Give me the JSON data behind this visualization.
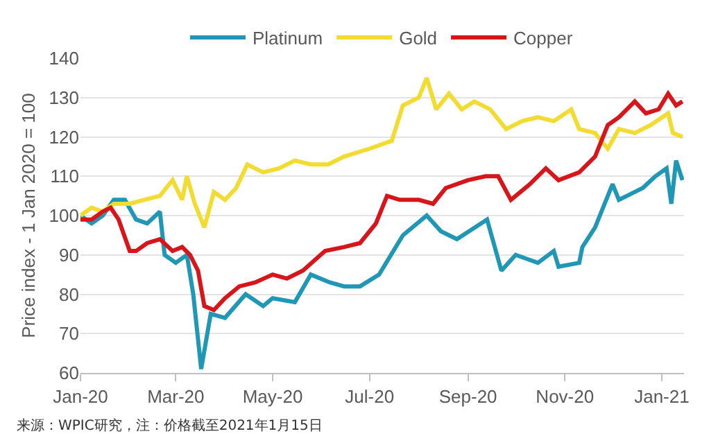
{
  "chart_data": {
    "type": "line",
    "ylabel": "Price index - 1 Jan 2020 = 100",
    "xlim": [
      "2020-01-01",
      "2021-01-15"
    ],
    "xticks": [
      {
        "value": "2020-01-01",
        "label": "Jan-20"
      },
      {
        "value": "2020-03-01",
        "label": "Mar-20"
      },
      {
        "value": "2020-05-01",
        "label": "May-20"
      },
      {
        "value": "2020-07-01",
        "label": "Jul-20"
      },
      {
        "value": "2020-09-01",
        "label": "Sep-20"
      },
      {
        "value": "2020-11-01",
        "label": "Nov-20"
      },
      {
        "value": "2021-01-01",
        "label": "Jan-21"
      }
    ],
    "ylim": [
      60,
      140
    ],
    "yticks": [
      60,
      70,
      80,
      90,
      100,
      110,
      120,
      130,
      140
    ],
    "grid": "y",
    "legend": "top",
    "marker": "none",
    "line_style": "solid",
    "annotations": [
      "来源：WPIC研究，注：价格截至2021年1月15日"
    ],
    "series": [
      {
        "name": "Platinum",
        "color": "#1f97b5",
        "x": [
          "2020-01-01",
          "2020-01-08",
          "2020-01-15",
          "2020-01-22",
          "2020-01-29",
          "2020-02-05",
          "2020-02-12",
          "2020-02-20",
          "2020-02-23",
          "2020-03-01",
          "2020-03-08",
          "2020-03-12",
          "2020-03-17",
          "2020-03-23",
          "2020-04-01",
          "2020-04-14",
          "2020-04-25",
          "2020-05-01",
          "2020-05-15",
          "2020-05-25",
          "2020-06-06",
          "2020-06-15",
          "2020-06-25",
          "2020-07-07",
          "2020-07-22",
          "2020-08-06",
          "2020-08-15",
          "2020-08-25",
          "2020-09-13",
          "2020-09-22",
          "2020-10-01",
          "2020-10-15",
          "2020-10-25",
          "2020-10-28",
          "2020-11-10",
          "2020-11-12",
          "2020-11-20",
          "2020-12-01",
          "2020-12-05",
          "2020-12-10",
          "2020-12-20",
          "2020-12-28",
          "2021-01-04",
          "2021-01-07",
          "2021-01-10",
          "2021-01-14"
        ],
        "values": [
          100,
          98,
          100,
          104,
          104,
          99,
          98,
          101,
          90,
          88,
          90,
          80,
          61,
          75,
          74,
          80,
          77,
          79,
          78,
          85,
          83,
          82,
          82,
          85,
          95,
          100,
          96,
          94,
          99,
          86,
          90,
          88,
          91,
          87,
          88,
          92,
          97,
          108,
          104,
          105,
          107,
          110,
          112,
          103,
          114,
          109
        ]
      },
      {
        "name": "Gold",
        "color": "#f2dc32",
        "x": [
          "2020-01-01",
          "2020-01-08",
          "2020-01-15",
          "2020-01-22",
          "2020-02-01",
          "2020-02-10",
          "2020-02-20",
          "2020-02-28",
          "2020-03-05",
          "2020-03-08",
          "2020-03-13",
          "2020-03-19",
          "2020-03-25",
          "2020-04-01",
          "2020-04-08",
          "2020-04-15",
          "2020-04-25",
          "2020-05-05",
          "2020-05-15",
          "2020-05-25",
          "2020-06-05",
          "2020-06-15",
          "2020-07-01",
          "2020-07-15",
          "2020-07-22",
          "2020-08-01",
          "2020-08-06",
          "2020-08-12",
          "2020-08-20",
          "2020-08-28",
          "2020-09-05",
          "2020-09-15",
          "2020-09-25",
          "2020-10-05",
          "2020-10-15",
          "2020-10-25",
          "2020-11-05",
          "2020-11-10",
          "2020-11-20",
          "2020-11-28",
          "2020-12-05",
          "2020-12-15",
          "2020-12-25",
          "2021-01-05",
          "2021-01-08",
          "2021-01-14"
        ],
        "values": [
          100,
          102,
          101,
          103,
          103,
          104,
          105,
          109,
          104,
          110,
          103,
          97,
          106,
          104,
          107,
          113,
          111,
          112,
          114,
          113,
          113,
          115,
          117,
          119,
          128,
          130,
          135,
          127,
          131,
          127,
          129,
          127,
          122,
          124,
          125,
          124,
          127,
          122,
          121,
          117,
          122,
          121,
          123,
          126,
          121,
          120
        ]
      },
      {
        "name": "Copper",
        "color": "#d7161c",
        "x": [
          "2020-01-01",
          "2020-01-08",
          "2020-01-15",
          "2020-01-20",
          "2020-01-25",
          "2020-02-01",
          "2020-02-05",
          "2020-02-12",
          "2020-02-20",
          "2020-02-28",
          "2020-03-05",
          "2020-03-10",
          "2020-03-15",
          "2020-03-19",
          "2020-03-25",
          "2020-04-01",
          "2020-04-10",
          "2020-04-20",
          "2020-05-01",
          "2020-05-10",
          "2020-05-20",
          "2020-06-03",
          "2020-06-15",
          "2020-06-25",
          "2020-07-05",
          "2020-07-12",
          "2020-07-20",
          "2020-08-01",
          "2020-08-10",
          "2020-08-18",
          "2020-09-01",
          "2020-09-12",
          "2020-09-20",
          "2020-09-28",
          "2020-10-10",
          "2020-10-20",
          "2020-10-28",
          "2020-11-10",
          "2020-11-20",
          "2020-11-28",
          "2020-12-05",
          "2020-12-15",
          "2020-12-22",
          "2020-12-30",
          "2021-01-05",
          "2021-01-10",
          "2021-01-14"
        ],
        "values": [
          99,
          99,
          101,
          102,
          99,
          91,
          91,
          93,
          94,
          91,
          92,
          90,
          86,
          77,
          76,
          79,
          82,
          83,
          85,
          84,
          86,
          91,
          92,
          93,
          98,
          105,
          104,
          104,
          103,
          107,
          109,
          110,
          110,
          104,
          108,
          112,
          109,
          111,
          115,
          123,
          125,
          129,
          126,
          127,
          131,
          128,
          129
        ]
      }
    ]
  }
}
